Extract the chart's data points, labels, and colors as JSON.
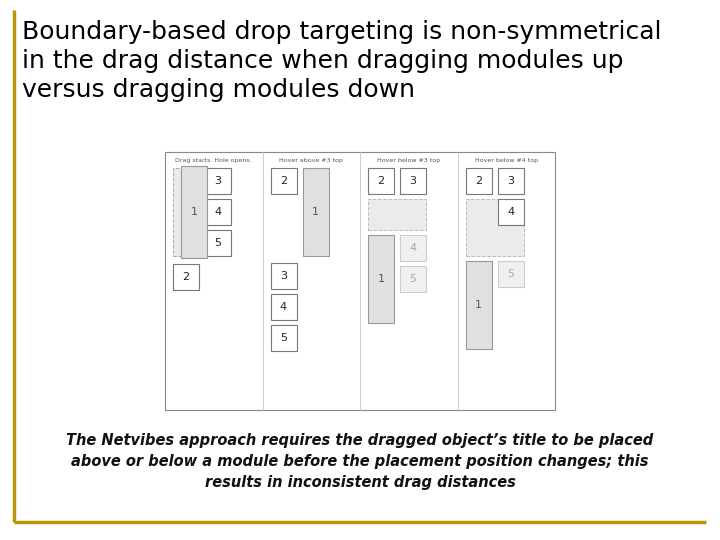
{
  "title": "Boundary-based drop targeting is non-symmetrical\nin the drag distance when dragging modules up\nversus dragging modules down",
  "title_fontsize": 18,
  "title_color": "#000000",
  "caption": "The Netvibes approach requires the dragged object’s title to be placed\nabove or below a module before the placement position changes; this\nresults in inconsistent drag distances",
  "caption_fontsize": 10.5,
  "bg_color": "#ffffff",
  "border_color": "#b8960c",
  "panel_labels": [
    "Drag starts. Hole opens.",
    "Hover above #3 top",
    "Hover below #3 top",
    "Hover below #4 top"
  ]
}
